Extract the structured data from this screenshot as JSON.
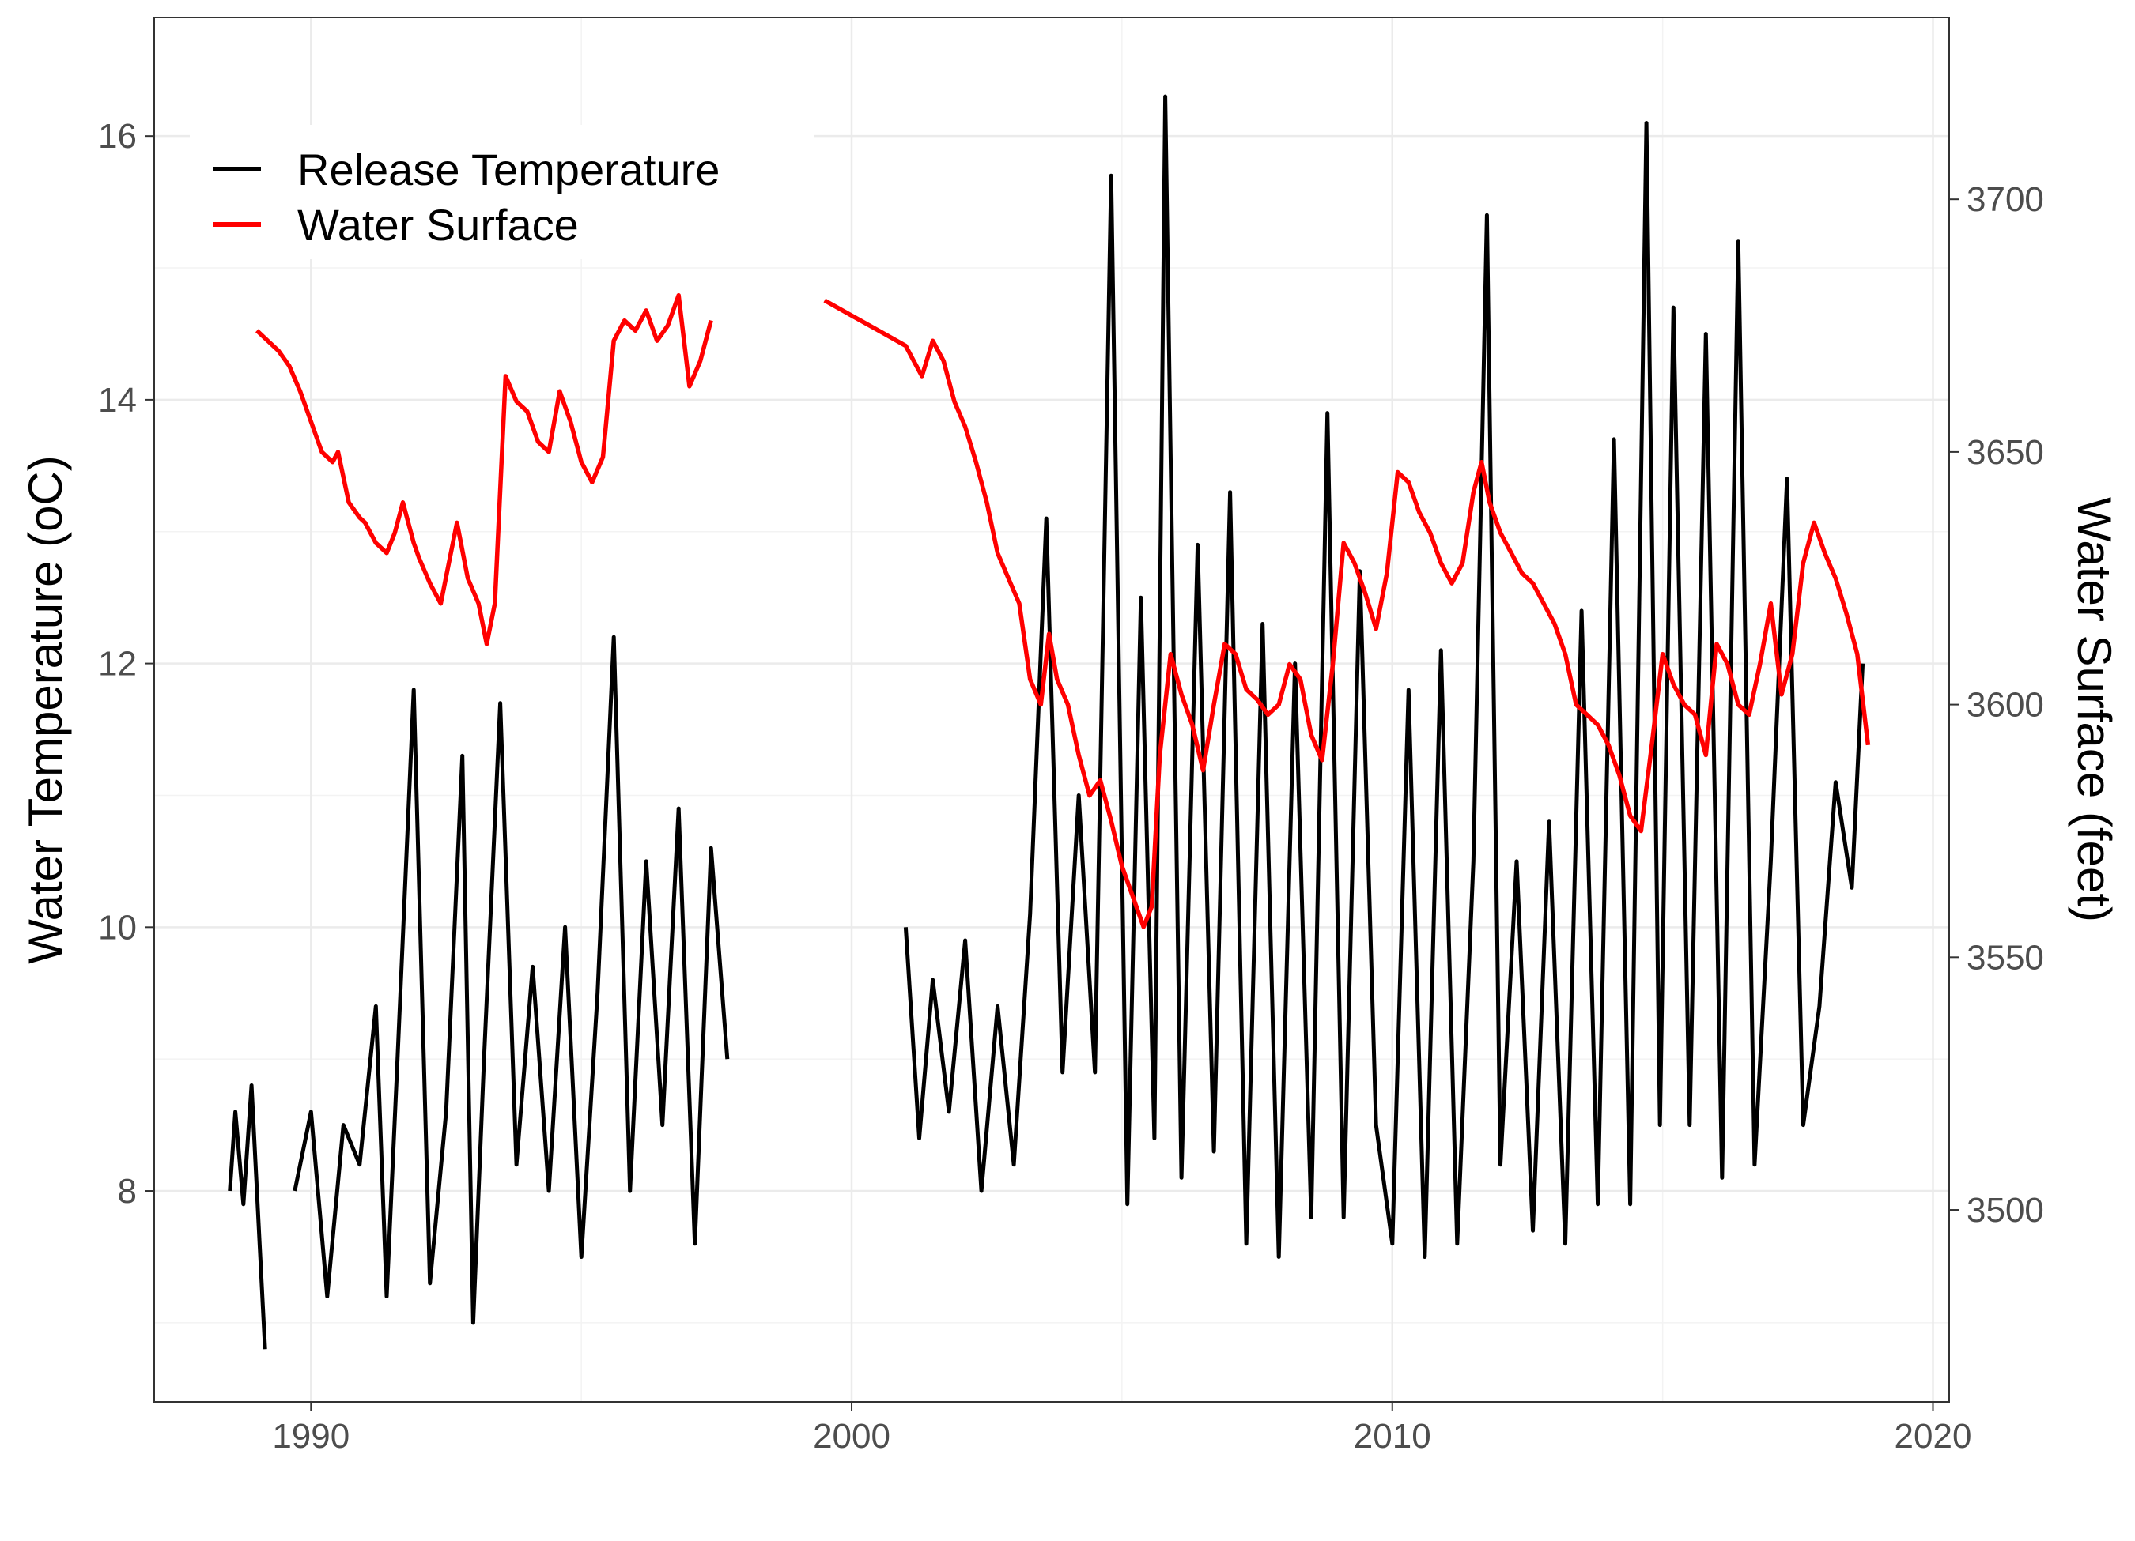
{
  "chart_data": {
    "type": "line",
    "title": "",
    "xlabel": "",
    "ylabel": "Water Temperature (oC)",
    "y2label": "Water Surface (feet)",
    "xlim": [
      1987.1,
      2020.3
    ],
    "ylim": [
      6.4,
      16.9
    ],
    "y2lim": [
      3462,
      3736
    ],
    "x_ticks": [
      1990,
      2000,
      2010,
      2020
    ],
    "x_tick_labels": [
      "1990",
      "2000",
      "2010",
      "2020"
    ],
    "y_ticks": [
      8,
      10,
      12,
      14,
      16
    ],
    "y_tick_labels": [
      "8",
      "10",
      "12",
      "14",
      "16"
    ],
    "y2_ticks": [
      3500,
      3550,
      3600,
      3650,
      3700
    ],
    "y2_tick_labels": [
      "3500",
      "3550",
      "3600",
      "3650",
      "3700"
    ],
    "grid": true,
    "legend_position": "top-left",
    "series": [
      {
        "name": "Release Temperature",
        "color": "#000000",
        "axis": "left",
        "segments": [
          {
            "x": [
              1988.5,
              1988.6,
              1988.75,
              1988.9,
              1989.05,
              1989.15
            ],
            "y": [
              8.0,
              8.6,
              7.9,
              8.8,
              7.6,
              6.8
            ]
          },
          {
            "x": [
              1989.7,
              1990.0,
              1990.3,
              1990.6,
              1990.9,
              1991.2,
              1991.4,
              1991.6,
              1991.9,
              1992.2,
              1992.5,
              1992.8,
              1993.0,
              1993.2,
              1993.5,
              1993.8,
              1994.1,
              1994.4,
              1994.7,
              1995.0,
              1995.3,
              1995.6,
              1995.9,
              1996.2,
              1996.5,
              1996.8,
              1997.1,
              1997.4,
              1997.7
            ],
            "y": [
              8.0,
              8.6,
              7.2,
              8.5,
              8.2,
              9.4,
              7.2,
              9.0,
              11.8,
              7.3,
              8.6,
              11.3,
              7.0,
              9.0,
              11.7,
              8.2,
              9.7,
              8.0,
              10.0,
              7.5,
              9.5,
              12.2,
              8.0,
              10.5,
              8.5,
              10.9,
              7.6,
              10.6,
              9.0
            ]
          },
          {
            "x": [
              2001.0,
              2001.25,
              2001.5,
              2001.8,
              2002.1,
              2002.4,
              2002.7,
              2003.0,
              2003.3,
              2003.6,
              2003.9,
              2004.2,
              2004.5,
              2004.8,
              2005.1,
              2005.35,
              2005.6,
              2005.8,
              2006.1,
              2006.4,
              2006.7,
              2007.0,
              2007.3,
              2007.6,
              2007.9,
              2008.2,
              2008.5,
              2008.8,
              2009.1,
              2009.4,
              2009.7,
              2010.0,
              2010.3,
              2010.6,
              2010.9,
              2011.2,
              2011.5,
              2011.75,
              2012.0,
              2012.3,
              2012.6,
              2012.9,
              2013.2,
              2013.5,
              2013.8,
              2014.1,
              2014.4,
              2014.7,
              2014.95,
              2015.2,
              2015.5,
              2015.8,
              2016.1,
              2016.4,
              2016.7,
              2017.0,
              2017.3,
              2017.6,
              2017.9,
              2018.2,
              2018.5,
              2018.7
            ],
            "y": [
              10.0,
              8.4,
              9.6,
              8.6,
              9.9,
              8.0,
              9.4,
              8.2,
              10.1,
              13.1,
              8.9,
              11.0,
              8.9,
              15.7,
              7.9,
              12.5,
              8.4,
              16.3,
              8.1,
              12.9,
              8.3,
              13.3,
              7.6,
              12.3,
              7.5,
              12.0,
              7.8,
              13.9,
              7.8,
              12.7,
              8.5,
              7.6,
              11.8,
              7.5,
              12.1,
              7.6,
              10.5,
              15.4,
              8.2,
              10.5,
              7.7,
              10.8,
              7.6,
              12.4,
              7.9,
              13.7,
              7.9,
              16.1,
              8.5,
              14.7,
              8.5,
              14.5,
              8.1,
              15.2,
              8.2,
              10.5,
              13.4,
              8.5,
              9.4,
              11.1,
              10.3,
              12.0
            ]
          }
        ]
      },
      {
        "name": "Water Surface",
        "color": "#ff0000",
        "axis": "right",
        "segments": [
          {
            "x": [
              1989.0,
              1989.2,
              1989.4,
              1989.6,
              1989.8,
              1990.0,
              1990.2,
              1990.4,
              1990.5,
              1990.7,
              1990.9,
              1991.0,
              1991.2,
              1991.4,
              1991.55,
              1991.7,
              1991.9,
              1992.0,
              1992.2,
              1992.4,
              1992.55,
              1992.7,
              1992.9,
              1993.1,
              1993.25,
              1993.4,
              1993.6,
              1993.8,
              1994.0,
              1994.2,
              1994.4,
              1994.6,
              1994.8,
              1995.0,
              1995.2,
              1995.4,
              1995.6,
              1995.8,
              1996.0,
              1996.2,
              1996.4,
              1996.6,
              1996.8,
              1997.0,
              1997.2,
              1997.4
            ],
            "y": [
              3674,
              3672,
              3670,
              3667,
              3662,
              3656,
              3650,
              3648,
              3650,
              3640,
              3637,
              3636,
              3632,
              3630,
              3634,
              3640,
              3632,
              3629,
              3624,
              3620,
              3628,
              3636,
              3625,
              3620,
              3612,
              3620,
              3665,
              3660,
              3658,
              3652,
              3650,
              3662,
              3656,
              3648,
              3644,
              3649,
              3672,
              3676,
              3674,
              3678,
              3672,
              3675,
              3681,
              3663,
              3668,
              3676
            ]
          },
          {
            "x": [
              1999.5,
              2000.0,
              2000.5,
              2001.0,
              2001.15,
              2001.3,
              2001.5,
              2001.7,
              2001.9,
              2002.1,
              2002.3,
              2002.5,
              2002.7,
              2002.9,
              2003.1,
              2003.3,
              2003.5,
              2003.65,
              2003.8,
              2004.0,
              2004.2,
              2004.4,
              2004.6,
              2004.8,
              2005.0,
              2005.2,
              2005.4,
              2005.55,
              2005.7,
              2005.9,
              2006.1,
              2006.3,
              2006.5,
              2006.7,
              2006.9,
              2007.1,
              2007.3,
              2007.5,
              2007.7,
              2007.9,
              2008.1,
              2008.3,
              2008.5,
              2008.7,
              2008.9,
              2009.1,
              2009.3,
              2009.5,
              2009.7,
              2009.9,
              2010.1,
              2010.3,
              2010.5,
              2010.7,
              2010.9,
              2011.1,
              2011.3,
              2011.5,
              2011.65,
              2011.8,
              2012.0,
              2012.2,
              2012.4,
              2012.6,
              2012.8,
              2013.0,
              2013.2,
              2013.4,
              2013.6,
              2013.8,
              2014.0,
              2014.2,
              2014.4,
              2014.6,
              2014.8,
              2015.0,
              2015.2,
              2015.4,
              2015.6,
              2015.8,
              2016.0,
              2016.2,
              2016.4,
              2016.6,
              2016.8,
              2017.0,
              2017.2,
              2017.4,
              2017.6,
              2017.8,
              2018.0,
              2018.2,
              2018.4,
              2018.6,
              2018.8
            ],
            "y": [
              3680,
              3677,
              3674,
              3671,
              3668,
              3665,
              3672,
              3668,
              3660,
              3655,
              3648,
              3640,
              3630,
              3625,
              3620,
              3605,
              3600,
              3614,
              3605,
              3600,
              3590,
              3582,
              3585,
              3577,
              3568,
              3562,
              3556,
              3560,
              3590,
              3610,
              3602,
              3596,
              3587,
              3600,
              3612,
              3610,
              3603,
              3601,
              3598,
              3600,
              3608,
              3605,
              3594,
              3589,
              3608,
              3632,
              3628,
              3622,
              3615,
              3626,
              3646,
              3644,
              3638,
              3634,
              3628,
              3624,
              3628,
              3642,
              3648,
              3640,
              3634,
              3630,
              3626,
              3624,
              3620,
              3616,
              3610,
              3600,
              3598,
              3596,
              3592,
              3586,
              3578,
              3575,
              3592,
              3610,
              3604,
              3600,
              3598,
              3590,
              3612,
              3608,
              3600,
              3598,
              3608,
              3620,
              3602,
              3610,
              3628,
              3636,
              3630,
              3625,
              3618,
              3610,
              3592
            ]
          }
        ]
      }
    ]
  }
}
